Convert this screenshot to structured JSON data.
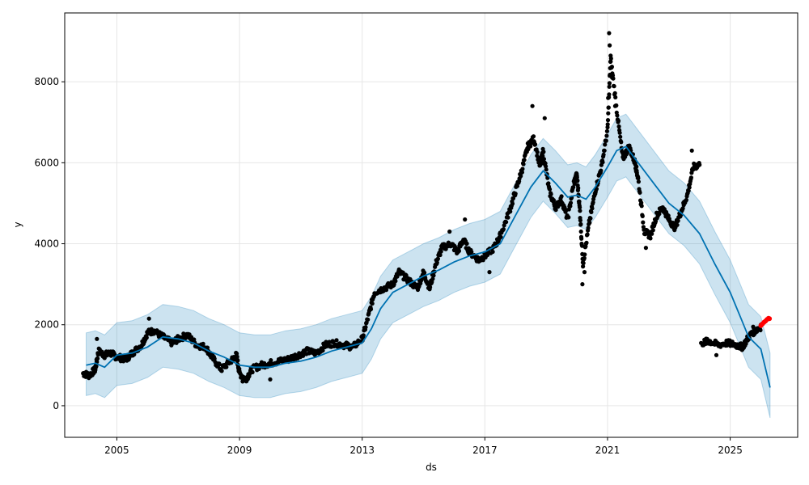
{
  "chart_data": {
    "type": "line",
    "title": "",
    "xlabel": "ds",
    "ylabel": "y",
    "xlim": [
      2003.3,
      2027.2
    ],
    "ylim": [
      -780,
      9700
    ],
    "grid": true,
    "x_ticks": [
      {
        "value": 2005,
        "label": "2005"
      },
      {
        "value": 2009,
        "label": "2009"
      },
      {
        "value": 2013,
        "label": "2013"
      },
      {
        "value": 2017,
        "label": "2017"
      },
      {
        "value": 2021,
        "label": "2021"
      },
      {
        "value": 2025,
        "label": "2025"
      }
    ],
    "y_ticks": [
      {
        "value": 0,
        "label": "0"
      },
      {
        "value": 2000,
        "label": "2000"
      },
      {
        "value": 4000,
        "label": "4000"
      },
      {
        "value": 6000,
        "label": "6000"
      },
      {
        "value": 8000,
        "label": "8000"
      }
    ],
    "colors": {
      "forecast_line": "#0072B2",
      "uncertainty_band": "#0072B2",
      "observed_points": "#000000",
      "highlighted_points": "#ff0000",
      "grid": "#e6e6e6"
    },
    "forecast": {
      "x": [
        2004.0,
        2004.3,
        2004.6,
        2005.0,
        2005.5,
        2006.0,
        2006.5,
        2007.0,
        2007.5,
        2008.0,
        2008.5,
        2009.0,
        2009.5,
        2010.0,
        2010.5,
        2011.0,
        2011.5,
        2012.0,
        2012.5,
        2013.0,
        2013.3,
        2013.6,
        2014.0,
        2014.5,
        2015.0,
        2015.5,
        2016.0,
        2016.5,
        2017.0,
        2017.5,
        2018.0,
        2018.5,
        2018.9,
        2019.3,
        2019.7,
        2020.0,
        2020.3,
        2020.6,
        2021.0,
        2021.3,
        2021.6,
        2022.0,
        2022.5,
        2023.0,
        2023.5,
        2024.0,
        2024.5,
        2025.0,
        2025.3,
        2025.6,
        2026.0,
        2026.3
      ],
      "yhat": [
        1000,
        1050,
        950,
        1250,
        1300,
        1450,
        1700,
        1650,
        1550,
        1350,
        1200,
        1000,
        950,
        950,
        1050,
        1100,
        1200,
        1350,
        1450,
        1550,
        1900,
        2400,
        2800,
        3000,
        3200,
        3350,
        3550,
        3700,
        3800,
        4000,
        4700,
        5400,
        5800,
        5500,
        5150,
        5200,
        5100,
        5400,
        5900,
        6300,
        6400,
        6000,
        5500,
        5000,
        4700,
        4250,
        3500,
        2800,
        2250,
        1700,
        1400,
        450
      ],
      "yhat_lower": [
        250,
        300,
        200,
        500,
        550,
        700,
        950,
        900,
        800,
        600,
        450,
        250,
        200,
        200,
        300,
        350,
        450,
        600,
        700,
        800,
        1150,
        1650,
        2050,
        2250,
        2450,
        2600,
        2800,
        2950,
        3050,
        3250,
        3950,
        4650,
        5050,
        4750,
        4400,
        4450,
        4350,
        4650,
        5150,
        5550,
        5650,
        5250,
        4750,
        4250,
        3950,
        3500,
        2750,
        2050,
        1500,
        950,
        650,
        -300
      ],
      "yhat_upper": [
        1800,
        1850,
        1750,
        2050,
        2100,
        2250,
        2500,
        2450,
        2350,
        2150,
        2000,
        1800,
        1750,
        1750,
        1850,
        1900,
        2000,
        2150,
        2250,
        2350,
        2700,
        3200,
        3600,
        3800,
        4000,
        4150,
        4350,
        4500,
        4600,
        4800,
        5500,
        6200,
        6600,
        6300,
        5950,
        6000,
        5900,
        6200,
        6700,
        7100,
        7200,
        6800,
        6300,
        5800,
        5500,
        5050,
        4300,
        3600,
        3050,
        2500,
        2200,
        1300
      ]
    },
    "observed_trace": [
      [
        2003.9,
        800
      ],
      [
        2004.1,
        750
      ],
      [
        2004.3,
        900
      ],
      [
        2004.4,
        1350
      ],
      [
        2004.6,
        1250
      ],
      [
        2004.8,
        1300
      ],
      [
        2005.0,
        1200
      ],
      [
        2005.3,
        1150
      ],
      [
        2005.5,
        1300
      ],
      [
        2005.8,
        1500
      ],
      [
        2006.0,
        1800
      ],
      [
        2006.2,
        1850
      ],
      [
        2006.5,
        1700
      ],
      [
        2006.8,
        1550
      ],
      [
        2007.0,
        1650
      ],
      [
        2007.3,
        1750
      ],
      [
        2007.6,
        1500
      ],
      [
        2007.9,
        1450
      ],
      [
        2008.1,
        1200
      ],
      [
        2008.4,
        900
      ],
      [
        2008.7,
        1100
      ],
      [
        2008.9,
        1250
      ],
      [
        2009.0,
        800
      ],
      [
        2009.2,
        650
      ],
      [
        2009.4,
        900
      ],
      [
        2009.7,
        1000
      ],
      [
        2010.0,
        1050
      ],
      [
        2010.3,
        1100
      ],
      [
        2010.6,
        1150
      ],
      [
        2010.9,
        1250
      ],
      [
        2011.2,
        1350
      ],
      [
        2011.5,
        1300
      ],
      [
        2011.8,
        1500
      ],
      [
        2012.1,
        1550
      ],
      [
        2012.4,
        1500
      ],
      [
        2012.7,
        1450
      ],
      [
        2013.0,
        1650
      ],
      [
        2013.2,
        2200
      ],
      [
        2013.4,
        2800
      ],
      [
        2013.7,
        2900
      ],
      [
        2014.0,
        3000
      ],
      [
        2014.2,
        3300
      ],
      [
        2014.5,
        3100
      ],
      [
        2014.8,
        2900
      ],
      [
        2015.0,
        3300
      ],
      [
        2015.2,
        2900
      ],
      [
        2015.4,
        3500
      ],
      [
        2015.6,
        3900
      ],
      [
        2015.9,
        4000
      ],
      [
        2016.1,
        3800
      ],
      [
        2016.3,
        4100
      ],
      [
        2016.5,
        3800
      ],
      [
        2016.8,
        3600
      ],
      [
        2017.0,
        3700
      ],
      [
        2017.3,
        3900
      ],
      [
        2017.5,
        4200
      ],
      [
        2017.8,
        4800
      ],
      [
        2018.0,
        5300
      ],
      [
        2018.2,
        5800
      ],
      [
        2018.4,
        6400
      ],
      [
        2018.6,
        6600
      ],
      [
        2018.8,
        5900
      ],
      [
        2018.9,
        6300
      ],
      [
        2019.1,
        5300
      ],
      [
        2019.3,
        4900
      ],
      [
        2019.5,
        5100
      ],
      [
        2019.7,
        4600
      ],
      [
        2019.9,
        5500
      ],
      [
        2020.0,
        5700
      ],
      [
        2020.1,
        4800
      ],
      [
        2020.2,
        3500
      ],
      [
        2020.4,
        4500
      ],
      [
        2020.6,
        5300
      ],
      [
        2020.8,
        5900
      ],
      [
        2021.0,
        6800
      ],
      [
        2021.1,
        8600
      ],
      [
        2021.3,
        7300
      ],
      [
        2021.5,
        6100
      ],
      [
        2021.7,
        6400
      ],
      [
        2021.9,
        6000
      ],
      [
        2022.0,
        5600
      ],
      [
        2022.2,
        4300
      ],
      [
        2022.4,
        4200
      ],
      [
        2022.6,
        4700
      ],
      [
        2022.8,
        4900
      ],
      [
        2023.0,
        4600
      ],
      [
        2023.2,
        4400
      ],
      [
        2023.4,
        4800
      ],
      [
        2023.6,
        5200
      ],
      [
        2023.8,
        5900
      ],
      [
        2024.0,
        5950
      ],
      [
        2024.1,
        1550
      ],
      [
        2024.3,
        1600
      ],
      [
        2024.6,
        1500
      ],
      [
        2024.9,
        1550
      ],
      [
        2025.2,
        1500
      ],
      [
        2025.4,
        1450
      ],
      [
        2025.6,
        1700
      ],
      [
        2025.8,
        1850
      ],
      [
        2026.0,
        1950
      ]
    ],
    "observed_points": [
      [
        2021.05,
        9200
      ],
      [
        2021.07,
        8900
      ],
      [
        2021.1,
        8500
      ],
      [
        2021.02,
        7600
      ],
      [
        2021.15,
        8100
      ],
      [
        2021.25,
        7400
      ],
      [
        2018.55,
        7400
      ],
      [
        2018.95,
        7100
      ],
      [
        2023.75,
        6300
      ],
      [
        2020.18,
        3000
      ],
      [
        2020.25,
        3300
      ],
      [
        2017.15,
        3300
      ],
      [
        2016.35,
        4600
      ],
      [
        2015.85,
        4300
      ],
      [
        2004.35,
        1650
      ],
      [
        2006.05,
        2150
      ],
      [
        2009.1,
        600
      ],
      [
        2010.0,
        650
      ],
      [
        2022.25,
        3900
      ],
      [
        2024.55,
        1250
      ],
      [
        2024.25,
        1650
      ],
      [
        2025.75,
        1950
      ],
      [
        2026.0,
        2000
      ]
    ],
    "highlighted_points": [
      [
        2026.0,
        1980
      ],
      [
        2026.05,
        2020
      ],
      [
        2026.1,
        2060
      ],
      [
        2026.15,
        2090
      ],
      [
        2026.2,
        2130
      ],
      [
        2026.25,
        2160
      ],
      [
        2026.28,
        2150
      ]
    ]
  }
}
